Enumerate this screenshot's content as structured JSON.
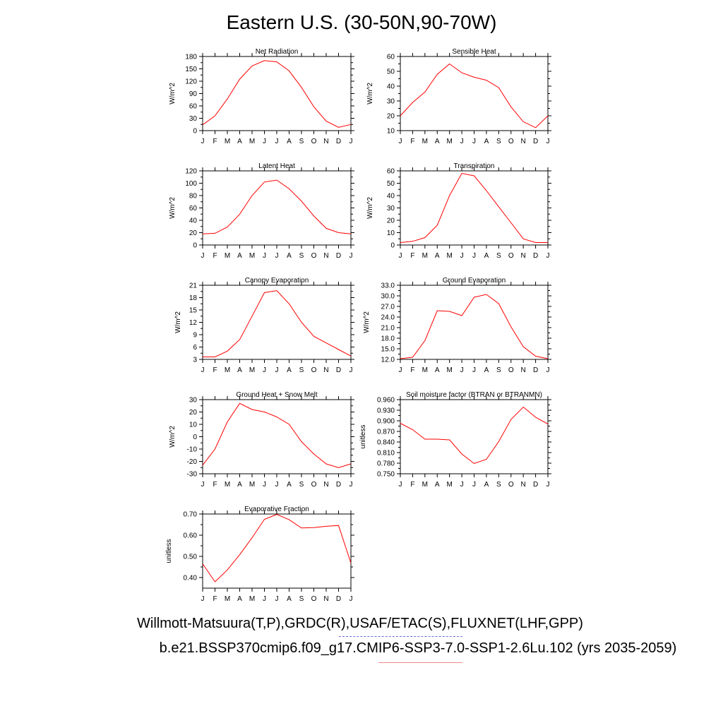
{
  "title": "Eastern U.S. (30-50N,90-70W)",
  "footer": {
    "line1": "Willmott-Matsuura(T,P),GRDC(R),USAF/ETAC(S),FLUXNET(LHF,GPP)",
    "line2": "b.e21.BSSP370cmip6.f09_g17.CMIP6-SSP3-7.0-SSP1-2.6Lu.102 (yrs 2035-2059)"
  },
  "colors": {
    "series": "#ff0000",
    "axis": "#000000"
  },
  "chart_data": [
    {
      "type": "line",
      "title": "Net Radiation",
      "ylabel": "W/m^2",
      "xlabel": "",
      "x": [
        "J",
        "F",
        "M",
        "A",
        "M",
        "J",
        "J",
        "A",
        "S",
        "O",
        "N",
        "D",
        "J"
      ],
      "yticks": [
        "0",
        "30",
        "60",
        "90",
        "120",
        "150",
        "180"
      ],
      "ylim": [
        0,
        180
      ],
      "values": [
        14,
        36,
        77,
        125,
        157,
        170,
        167,
        145,
        105,
        58,
        23,
        8,
        15
      ]
    },
    {
      "type": "line",
      "title": "Sensible Heat",
      "ylabel": "W/m^2",
      "xlabel": "",
      "x": [
        "J",
        "F",
        "M",
        "A",
        "M",
        "J",
        "J",
        "A",
        "S",
        "O",
        "N",
        "D",
        "J"
      ],
      "yticks": [
        "10",
        "20",
        "30",
        "40",
        "50",
        "60"
      ],
      "ylim": [
        10,
        60
      ],
      "values": [
        20,
        29,
        36,
        48,
        55,
        49,
        46,
        44,
        39,
        26,
        16,
        12,
        20
      ]
    },
    {
      "type": "line",
      "title": "Latent Heat",
      "ylabel": "W/m^2",
      "xlabel": "",
      "x": [
        "J",
        "F",
        "M",
        "A",
        "M",
        "J",
        "J",
        "A",
        "S",
        "O",
        "N",
        "D",
        "J"
      ],
      "yticks": [
        "0",
        "20",
        "40",
        "60",
        "80",
        "100",
        "120"
      ],
      "ylim": [
        0,
        120
      ],
      "values": [
        18,
        19,
        29,
        50,
        80,
        102,
        105,
        91,
        71,
        47,
        27,
        20,
        18
      ]
    },
    {
      "type": "line",
      "title": "Transpiration",
      "ylabel": "W/m^2",
      "xlabel": "",
      "x": [
        "J",
        "F",
        "M",
        "A",
        "M",
        "J",
        "J",
        "A",
        "S",
        "O",
        "N",
        "D",
        "J"
      ],
      "yticks": [
        "0",
        "10",
        "20",
        "30",
        "40",
        "50",
        "60"
      ],
      "ylim": [
        0,
        60
      ],
      "values": [
        2,
        3,
        6,
        16,
        40,
        58,
        56,
        44,
        31,
        18,
        5,
        2,
        2
      ]
    },
    {
      "type": "line",
      "title": "Canopy Evaporation",
      "ylabel": "W/m^2",
      "xlabel": "",
      "x": [
        "J",
        "F",
        "M",
        "A",
        "M",
        "J",
        "J",
        "A",
        "S",
        "O",
        "N",
        "D",
        "J"
      ],
      "yticks": [
        "3",
        "6",
        "9",
        "12",
        "15",
        "18",
        "21"
      ],
      "ylim": [
        3,
        21
      ],
      "values": [
        3.6,
        3.6,
        5.0,
        7.8,
        13.5,
        19.2,
        19.7,
        16.5,
        12.0,
        8.6,
        7.0,
        5.4,
        3.8
      ]
    },
    {
      "type": "line",
      "title": "Ground Evaporation",
      "ylabel": "W/m^2",
      "xlabel": "",
      "x": [
        "J",
        "F",
        "M",
        "A",
        "M",
        "J",
        "J",
        "A",
        "S",
        "O",
        "N",
        "D",
        "J"
      ],
      "yticks": [
        "12.0",
        "15.0",
        "18.0",
        "21.0",
        "24.0",
        "27.0",
        "30.0",
        "33.0"
      ],
      "ylim": [
        12,
        33
      ],
      "values": [
        12.2,
        12.6,
        17.3,
        25.8,
        25.6,
        24.4,
        29.6,
        30.4,
        27.8,
        21.2,
        15.6,
        12.9,
        12.2
      ]
    },
    {
      "type": "line",
      "title": "Ground Heat + Snow Melt",
      "ylabel": "W/m^2",
      "xlabel": "",
      "x": [
        "J",
        "F",
        "M",
        "A",
        "M",
        "J",
        "J",
        "A",
        "S",
        "O",
        "N",
        "D",
        "J"
      ],
      "yticks": [
        "-30",
        "-20",
        "-10",
        "0",
        "10",
        "20",
        "30"
      ],
      "ylim": [
        -30,
        30
      ],
      "values": [
        -23,
        -10,
        12,
        27,
        22,
        20,
        16,
        10,
        -4,
        -14,
        -22,
        -25,
        -22
      ]
    },
    {
      "type": "line",
      "title": "Soil moisture factor (BTRAN or BTRANMN)",
      "ylabel": "unitless",
      "xlabel": "",
      "x": [
        "J",
        "F",
        "M",
        "A",
        "M",
        "J",
        "J",
        "A",
        "S",
        "O",
        "N",
        "D",
        "J"
      ],
      "yticks": [
        "0.750",
        "0.780",
        "0.810",
        "0.840",
        "0.870",
        "0.900",
        "0.930",
        "0.960"
      ],
      "ylim": [
        0.75,
        0.96
      ],
      "values": [
        0.893,
        0.875,
        0.848,
        0.848,
        0.846,
        0.806,
        0.779,
        0.791,
        0.841,
        0.904,
        0.939,
        0.91,
        0.891
      ]
    },
    {
      "type": "line",
      "title": "Evaporative Fraction",
      "ylabel": "unitless",
      "xlabel": "",
      "x": [
        "J",
        "F",
        "M",
        "A",
        "M",
        "J",
        "J",
        "A",
        "S",
        "O",
        "N",
        "D",
        "J"
      ],
      "yticks": [
        "0.40",
        "0.50",
        "0.60",
        "0.70"
      ],
      "ylim": [
        0.35,
        0.7
      ],
      "values": [
        0.465,
        0.38,
        0.436,
        0.508,
        0.588,
        0.675,
        0.698,
        0.673,
        0.634,
        0.636,
        0.642,
        0.646,
        0.468
      ]
    }
  ]
}
